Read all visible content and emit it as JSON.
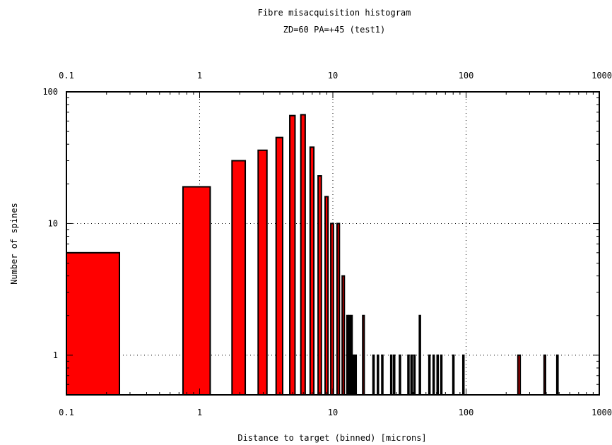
{
  "chart_data": {
    "type": "bar",
    "title": "Fibre misacquisition histogram",
    "subtitle": "ZD=60 PA=+45 (test1)",
    "xlabel": "Distance to target (binned) [microns]",
    "ylabel": "Number of spines",
    "xscale": "log",
    "yscale": "log",
    "xlim": [
      0.1,
      1000
    ],
    "ylim": [
      0.5,
      100
    ],
    "grid": true,
    "legend": "none",
    "bar_color": "#ff0000",
    "x_ticks": [
      "0.1",
      "1",
      "10",
      "100",
      "1000"
    ],
    "y_ticks": [
      "1",
      "10",
      "100"
    ],
    "bars": [
      {
        "x0": 0.1,
        "x1": 0.25,
        "value": 6
      },
      {
        "x0": 0.75,
        "x1": 1.2,
        "value": 19
      },
      {
        "x0": 1.75,
        "x1": 2.2,
        "value": 30
      },
      {
        "x0": 2.75,
        "x1": 3.2,
        "value": 36
      },
      {
        "x0": 3.75,
        "x1": 4.2,
        "value": 45
      },
      {
        "x0": 4.75,
        "x1": 5.2,
        "value": 66
      },
      {
        "x0": 5.75,
        "x1": 6.2,
        "value": 67
      },
      {
        "x0": 6.75,
        "x1": 7.2,
        "value": 38
      },
      {
        "x0": 7.75,
        "x1": 8.2,
        "value": 23
      },
      {
        "x0": 8.75,
        "x1": 9.2,
        "value": 16
      },
      {
        "x0": 9.65,
        "x1": 10.1,
        "value": 10
      },
      {
        "x0": 10.75,
        "x1": 11.2,
        "value": 10
      },
      {
        "x0": 11.75,
        "x1": 12.2,
        "value": 4
      },
      {
        "x0": 12.75,
        "x1": 13.0,
        "value": 2
      },
      {
        "x0": 13.2,
        "x1": 13.45,
        "value": 2
      },
      {
        "x0": 13.7,
        "x1": 13.95,
        "value": 2
      },
      {
        "x0": 14.2,
        "x1": 14.45,
        "value": 1
      },
      {
        "x0": 14.7,
        "x1": 14.95,
        "value": 1
      },
      {
        "x0": 16.75,
        "x1": 17.2,
        "value": 2
      },
      {
        "x0": 20.0,
        "x1": 20.4,
        "value": 1
      },
      {
        "x0": 21.6,
        "x1": 22.0,
        "value": 1
      },
      {
        "x0": 23.3,
        "x1": 23.7,
        "value": 1
      },
      {
        "x0": 27.2,
        "x1": 27.6,
        "value": 1
      },
      {
        "x0": 28.6,
        "x1": 29.0,
        "value": 1
      },
      {
        "x0": 31.6,
        "x1": 32.0,
        "value": 1
      },
      {
        "x0": 36.6,
        "x1": 37.0,
        "value": 1
      },
      {
        "x0": 38.6,
        "x1": 39.0,
        "value": 1
      },
      {
        "x0": 40.6,
        "x1": 41.0,
        "value": 1
      },
      {
        "x0": 44.6,
        "x1": 45.0,
        "value": 2
      },
      {
        "x0": 52.6,
        "x1": 53.0,
        "value": 1
      },
      {
        "x0": 56.6,
        "x1": 57.0,
        "value": 1
      },
      {
        "x0": 60.6,
        "x1": 61.0,
        "value": 1
      },
      {
        "x0": 64.6,
        "x1": 65.0,
        "value": 1
      },
      {
        "x0": 79.6,
        "x1": 80.0,
        "value": 1
      },
      {
        "x0": 94.6,
        "x1": 95.0,
        "value": 1
      },
      {
        "x0": 245.0,
        "x1": 255.0,
        "value": 1
      },
      {
        "x0": 385.0,
        "x1": 395.0,
        "value": 1
      },
      {
        "x0": 480.0,
        "x1": 490.0,
        "value": 1
      }
    ]
  }
}
